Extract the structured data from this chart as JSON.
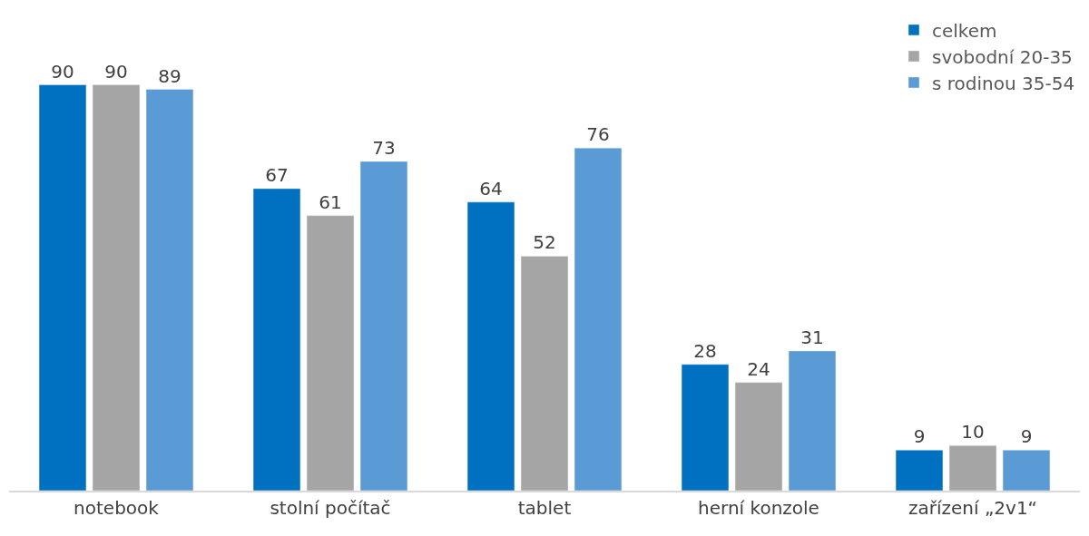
{
  "chart_data": {
    "type": "bar",
    "categories": [
      "notebook",
      "stolní počítač",
      "tablet",
      "herní konzole",
      "zařízení „2v1“"
    ],
    "series": [
      {
        "name": "celkem",
        "color": "#0070c0",
        "values": [
          90,
          67,
          64,
          28,
          9
        ]
      },
      {
        "name": "svobodní 20-35",
        "color": "#a5a5a5",
        "values": [
          90,
          61,
          52,
          24,
          10
        ]
      },
      {
        "name": "s rodinou 35-54",
        "color": "#5b9bd5",
        "values": [
          89,
          73,
          76,
          31,
          9
        ]
      }
    ],
    "data_labels": true,
    "legend": "top right"
  }
}
